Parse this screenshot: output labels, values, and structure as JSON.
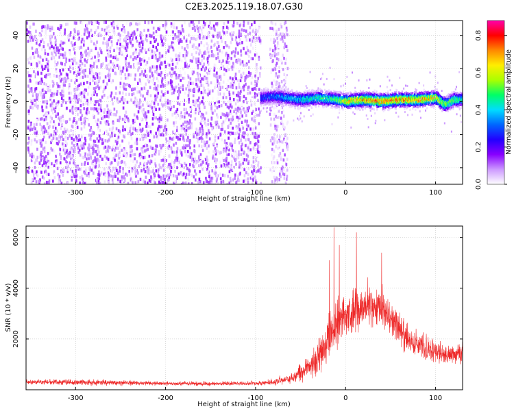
{
  "figure": {
    "title": "C2E3.2025.119.18.07.G30"
  },
  "colorbar": {
    "label": "Normalized spectral amplitude",
    "ticks": [
      0.0,
      0.2,
      0.4,
      0.6,
      0.8
    ],
    "tick_labels": [
      "0.0",
      "0.2",
      "0.4",
      "0.6",
      "0.8"
    ],
    "range": [
      0,
      0.88
    ],
    "colormap": [
      "#ffffff",
      "#cc99ff",
      "#8800ff",
      "#2200ff",
      "#0066ff",
      "#00ddff",
      "#00ff66",
      "#aaff00",
      "#ffee00",
      "#ff8800",
      "#ff0000",
      "#ff00aa"
    ]
  },
  "colors": {
    "snr_line": "#ee2a2a"
  },
  "chart_data": [
    {
      "type": "heatmap",
      "title": "C2E3.2025.119.18.07.G30",
      "xlabel": "Height of straight line (km)",
      "ylabel": "Frequency (Hz)",
      "xlim": [
        -355,
        130
      ],
      "ylim": [
        -50,
        49
      ],
      "x_ticks": [
        -300,
        -200,
        -100,
        0,
        100
      ],
      "x_tick_labels": [
        "-300",
        "-200",
        "-100",
        "0",
        "100"
      ],
      "y_ticks": [
        -40,
        -20,
        0,
        20,
        40
      ],
      "y_tick_labels": [
        "-40",
        "-20",
        "0",
        "20",
        "40"
      ],
      "regions": [
        {
          "name": "noise",
          "x_range": [
            -355,
            -95
          ],
          "freq_range": [
            -50,
            49
          ],
          "amplitude": [
            0.0,
            0.15
          ]
        },
        {
          "name": "noise",
          "x_range": [
            -85,
            -65
          ],
          "freq_range": [
            -50,
            49
          ],
          "amplitude": [
            0.0,
            0.12
          ]
        },
        {
          "name": "signal",
          "x_range": [
            -95,
            130
          ],
          "center_freq_hz": 1,
          "half_width_hz": 5,
          "peak_amplitude": 0.85
        }
      ],
      "signal_track": {
        "x": [
          -95,
          -80,
          -65,
          -50,
          -30,
          -10,
          0,
          20,
          40,
          60,
          80,
          100,
          110,
          120,
          130
        ],
        "freq": [
          2,
          3,
          2,
          1,
          2,
          1,
          0,
          1,
          0,
          1,
          1,
          2,
          -2,
          1,
          1
        ],
        "amplitude": [
          0.3,
          0.35,
          0.4,
          0.45,
          0.5,
          0.55,
          0.7,
          0.75,
          0.8,
          0.78,
          0.75,
          0.7,
          0.6,
          0.55,
          0.5
        ]
      }
    },
    {
      "type": "line",
      "xlabel": "Height of straight line (km)",
      "ylabel": "SNR (10 * v/v)",
      "xlim": [
        -355,
        130
      ],
      "ylim": [
        0,
        6450
      ],
      "x_ticks": [
        -300,
        -200,
        -100,
        0,
        100
      ],
      "x_tick_labels": [
        "-300",
        "-200",
        "-100",
        "0",
        "100"
      ],
      "y_ticks": [
        2000,
        4000,
        6000
      ],
      "y_tick_labels": [
        "2000",
        "4000",
        "6000"
      ],
      "series": [
        {
          "x": [
            -355,
            -300,
            -250,
            -200,
            -150,
            -100,
            -80,
            -60,
            -50,
            -40,
            -30,
            -20,
            -10,
            0,
            10,
            20,
            30,
            40,
            50,
            60,
            70,
            80,
            90,
            100,
            110,
            120,
            130
          ],
          "y": [
            300,
            300,
            270,
            250,
            240,
            250,
            300,
            450,
            650,
            900,
            1300,
            1900,
            2600,
            3000,
            3100,
            3200,
            3300,
            3200,
            2900,
            2400,
            2000,
            1800,
            1600,
            1500,
            1450,
            1350,
            1400
          ],
          "spread": [
            150,
            150,
            140,
            120,
            120,
            130,
            180,
            300,
            450,
            650,
            900,
            1200,
            1400,
            1400,
            1300,
            1300,
            1200,
            1100,
            1000,
            900,
            800,
            700,
            650,
            600,
            550,
            550,
            600
          ],
          "peaks": [
            [
              -13,
              6400
            ],
            [
              12,
              6200
            ],
            [
              -7,
              5700
            ],
            [
              40,
              5400
            ],
            [
              -18,
              5100
            ]
          ]
        }
      ]
    }
  ]
}
